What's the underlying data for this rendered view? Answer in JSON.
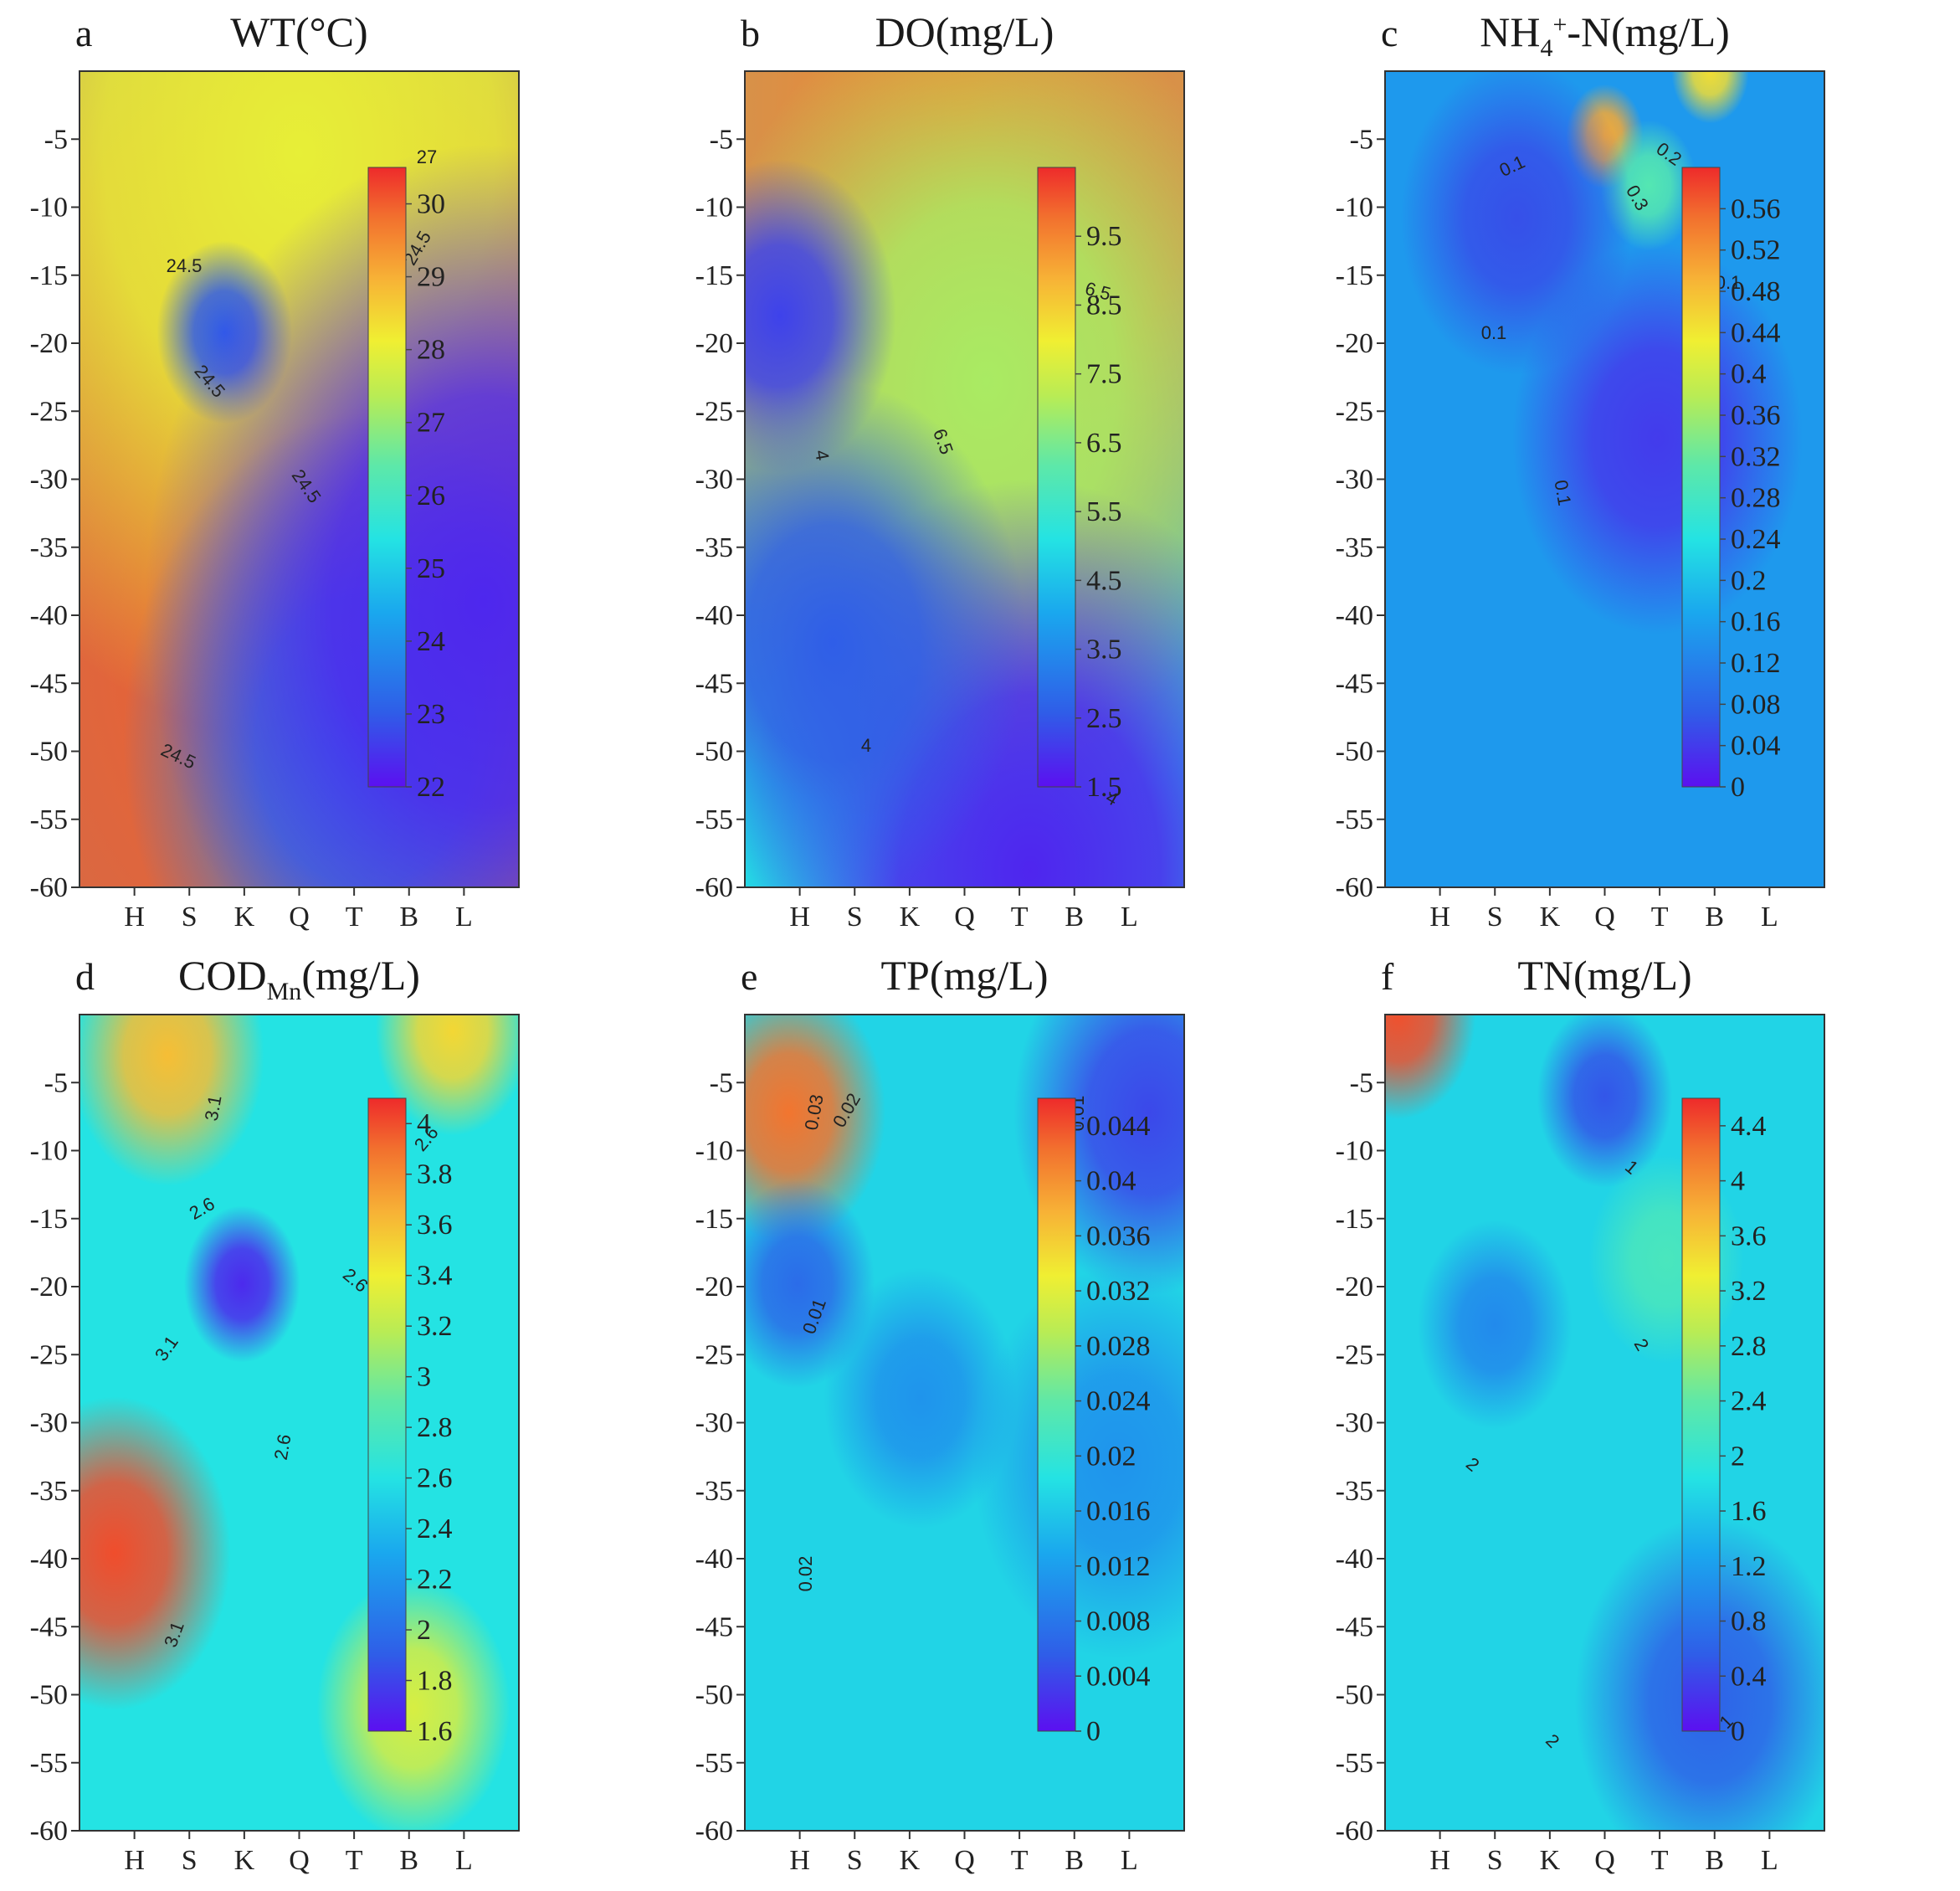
{
  "figure": {
    "y_axis_ticks": [
      -5,
      -10,
      -15,
      -20,
      -25,
      -30,
      -35,
      -40,
      -45,
      -50,
      -55,
      -60
    ],
    "x_categories": [
      "H",
      "S",
      "K",
      "Q",
      "T",
      "B",
      "L"
    ]
  },
  "chart_data": [
    {
      "type": "heatmap",
      "panel_letter": "a",
      "title": "WT(°C)",
      "title_parts": {
        "main": "WT(°C)",
        "sub": "",
        "sup": "",
        "rest": ""
      },
      "x": [
        "H",
        "S",
        "K",
        "Q",
        "T",
        "B",
        "L"
      ],
      "ylim": [
        -60,
        0
      ],
      "colorbar": {
        "min": 22,
        "max": 30.5,
        "ticks": [
          30,
          29,
          28,
          27,
          26,
          25,
          24,
          23,
          22
        ]
      },
      "contour_labels": [
        "27",
        "24.5",
        "24.5",
        "24.5",
        "24.5",
        "24.5"
      ],
      "field": [
        [
          30,
          0.5,
          0.7,
          0.9
        ],
        [
          28,
          0.5,
          0.1,
          0.45
        ],
        [
          23,
          0.33,
          0.32,
          0.07
        ],
        [
          23.6,
          0.65,
          0.82,
          0.25
        ],
        [
          22.3,
          0.92,
          0.65,
          0.35
        ]
      ],
      "base": 24.7
    },
    {
      "type": "heatmap",
      "panel_letter": "b",
      "title": "DO(mg/L)",
      "title_parts": {
        "main": "DO(mg/L)",
        "sub": "",
        "sup": "",
        "rest": ""
      },
      "x": [
        "H",
        "S",
        "K",
        "Q",
        "T",
        "B",
        "L"
      ],
      "ylim": [
        -60,
        0
      ],
      "colorbar": {
        "min": 1.5,
        "max": 10.5,
        "ticks": [
          9.5,
          8.5,
          7.5,
          6.5,
          5.5,
          4.5,
          3.5,
          2.5,
          1.5
        ]
      },
      "contour_labels": [
        "6.5",
        "6.5",
        "4",
        "4",
        "4"
      ],
      "field": [
        [
          9.5,
          0.5,
          0.05,
          0.55
        ],
        [
          7,
          0.55,
          0.38,
          0.3
        ],
        [
          2.2,
          0.08,
          0.3,
          0.12
        ],
        [
          1.8,
          0.65,
          0.98,
          0.3
        ],
        [
          2.6,
          0.2,
          0.7,
          0.2
        ]
      ],
      "base": 5
    },
    {
      "type": "heatmap",
      "panel_letter": "c",
      "title": "NH4+-N(mg/L)",
      "title_parts": {
        "main": "NH",
        "sub": "4",
        "sup": "+",
        "rest": "-N(mg/L)"
      },
      "x": [
        "H",
        "S",
        "K",
        "Q",
        "T",
        "B",
        "L"
      ],
      "ylim": [
        -60,
        0
      ],
      "colorbar": {
        "min": 0,
        "max": 0.6,
        "ticks": [
          0.56,
          0.52,
          0.48,
          0.44,
          0.4,
          0.36,
          0.32,
          0.28,
          0.24,
          0.2,
          0.16,
          0.12,
          0.08,
          0.04,
          0
        ]
      },
      "contour_labels": [
        "0.1",
        "0.2",
        "0.3",
        "0.1",
        "0.1",
        "0.1"
      ],
      "field": [
        [
          0.5,
          0.5,
          0.08,
          0.04
        ],
        [
          0.45,
          0.74,
          0.0,
          0.04
        ],
        [
          0.3,
          0.6,
          0.14,
          0.05
        ],
        [
          0.04,
          0.62,
          0.45,
          0.15
        ],
        [
          0.06,
          0.3,
          0.18,
          0.12
        ]
      ],
      "base": 0.15
    },
    {
      "type": "heatmap",
      "panel_letter": "d",
      "title": "CODMn(mg/L)",
      "title_parts": {
        "main": "COD",
        "sub": "Mn",
        "sup": "",
        "rest": "(mg/L)"
      },
      "x": [
        "H",
        "S",
        "K",
        "Q",
        "T",
        "B",
        "L"
      ],
      "ylim": [
        -60,
        0
      ],
      "colorbar": {
        "min": 1.6,
        "max": 4.1,
        "ticks": [
          4,
          3.8,
          3.6,
          3.4,
          3.2,
          3,
          2.8,
          2.6,
          2.4,
          2.2,
          2,
          1.8,
          1.6
        ]
      },
      "contour_labels": [
        "3.1",
        "2.6",
        "2.6",
        "2.6",
        "3.1",
        "2.6",
        "3.1"
      ],
      "field": [
        [
          4,
          0.08,
          0.66,
          0.12
        ],
        [
          3.6,
          0.2,
          0.05,
          0.1
        ],
        [
          1.7,
          0.37,
          0.33,
          0.06
        ],
        [
          3.3,
          0.76,
          0.85,
          0.1
        ],
        [
          3.5,
          0.85,
          0.02,
          0.08
        ]
      ],
      "base": 2.6
    },
    {
      "type": "heatmap",
      "panel_letter": "e",
      "title": "TP(mg/L)",
      "title_parts": {
        "main": "TP(mg/L)",
        "sub": "",
        "sup": "",
        "rest": ""
      },
      "x": [
        "H",
        "S",
        "K",
        "Q",
        "T",
        "B",
        "L"
      ],
      "ylim": [
        -60,
        0
      ],
      "colorbar": {
        "min": 0,
        "max": 0.046,
        "ticks": [
          0.044,
          0.04,
          0.036,
          0.032,
          0.028,
          0.024,
          0.02,
          0.016,
          0.012,
          0.008,
          0.004,
          0
        ]
      },
      "contour_labels": [
        "0.03",
        "0.02",
        "0.01",
        "0.01",
        "0.02"
      ],
      "field": [
        [
          0.042,
          0.1,
          0.12,
          0.1
        ],
        [
          0.007,
          0.12,
          0.33,
          0.08
        ],
        [
          0.004,
          0.92,
          0.12,
          0.14
        ],
        [
          0.011,
          0.85,
          0.55,
          0.15
        ],
        [
          0.011,
          0.4,
          0.47,
          0.1
        ]
      ],
      "base": 0.017
    },
    {
      "type": "heatmap",
      "panel_letter": "f",
      "title": "TN(mg/L)",
      "title_parts": {
        "main": "TN(mg/L)",
        "sub": "",
        "sup": "",
        "rest": ""
      },
      "x": [
        "H",
        "S",
        "K",
        "Q",
        "T",
        "B",
        "L"
      ],
      "ylim": [
        -60,
        0
      ],
      "colorbar": {
        "min": 0,
        "max": 4.6,
        "ticks": [
          4.4,
          4,
          3.6,
          3.2,
          2.8,
          2.4,
          2,
          1.6,
          1.2,
          0.8,
          0.4,
          0
        ]
      },
      "contour_labels": [
        "1",
        "2",
        "2",
        "2",
        "1"
      ],
      "field": [
        [
          4.4,
          0.03,
          0.0,
          0.08
        ],
        [
          0.5,
          0.5,
          0.1,
          0.07
        ],
        [
          0.6,
          0.74,
          0.84,
          0.14
        ],
        [
          1.0,
          0.25,
          0.38,
          0.08
        ],
        [
          2.2,
          0.64,
          0.3,
          0.08
        ]
      ],
      "base": 1.7
    }
  ]
}
